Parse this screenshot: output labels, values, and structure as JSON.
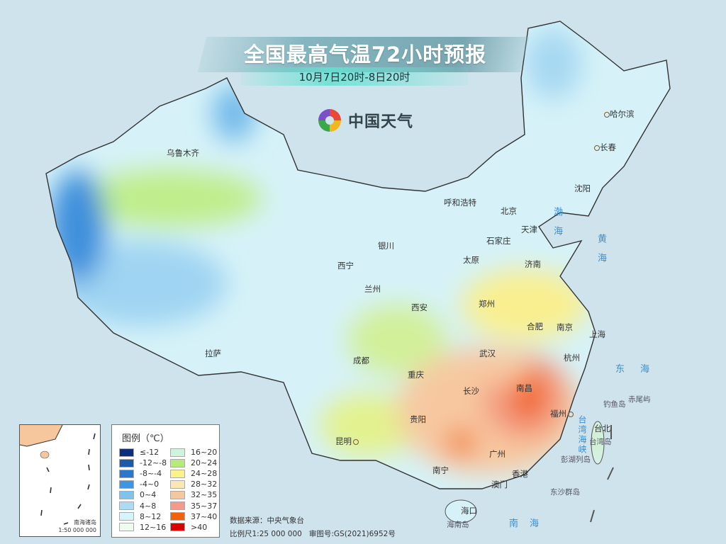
{
  "header": {
    "title": "全国最高气温72小时预报",
    "subtitle": "10月7日20时-8日20时",
    "logo_text": "中国天气",
    "logo_icon": "china-weather-swirl-logo"
  },
  "cities": {
    "urumqi": "乌鲁木齐",
    "harbin": "哈尔滨",
    "changchun": "长春",
    "shenyang": "沈阳",
    "hohhot": "呼和浩特",
    "beijing": "北京",
    "tianjin": "天津",
    "shijiazhuang": "石家庄",
    "yinchuan": "银川",
    "taiyuan": "太原",
    "jinan": "济南",
    "xining": "西宁",
    "lanzhou": "兰州",
    "zhengzhou": "郑州",
    "xian": "西安",
    "hefei": "合肥",
    "nanjing": "南京",
    "shanghai": "上海",
    "wuhan": "武汉",
    "hangzhou": "杭州",
    "lhasa": "拉萨",
    "chengdu": "成都",
    "chongqing": "重庆",
    "changsha": "长沙",
    "nanchang": "南昌",
    "fuzhou": "福州",
    "taipei": "台北",
    "guiyang": "贵阳",
    "kunming": "昆明",
    "guangzhou": "广州",
    "nanning": "南宁",
    "hongkong": "香港",
    "macau": "澳门",
    "haikou": "海口"
  },
  "seas": {
    "bohai": "渤海",
    "huanghai": "黄海",
    "donghai": "东海",
    "nanhai": "南海",
    "taiwan_strait": "台湾海峡"
  },
  "islands": {
    "chiweiyu": "赤尾屿",
    "diaoyudao": "钓鱼岛",
    "taiwan": "台湾岛",
    "penghu": "彭湖列岛",
    "dongsha": "东沙群岛",
    "hainan": "海南岛"
  },
  "inset": {
    "label": "南海诸岛",
    "scale": "1:50 000 000"
  },
  "legend": {
    "title": "图例（℃）",
    "items": [
      {
        "label": "≤-12",
        "color": "#0b2f7c"
      },
      {
        "label": "-12~-8",
        "color": "#1d5aa8"
      },
      {
        "label": "-8~-4",
        "color": "#2b77cc"
      },
      {
        "label": "-4~0",
        "color": "#3e95e0"
      },
      {
        "label": "0~4",
        "color": "#7cc4ee"
      },
      {
        "label": "4~8",
        "color": "#aadcf4"
      },
      {
        "label": "8~12",
        "color": "#d3f5fb"
      },
      {
        "label": "12~16",
        "color": "#eefbee"
      },
      {
        "label": "16~20",
        "color": "#cdf5dc"
      },
      {
        "label": "20~24",
        "color": "#b5ec78"
      },
      {
        "label": "24~28",
        "color": "#fbf28a"
      },
      {
        "label": "28~32",
        "color": "#fbe6b4"
      },
      {
        "label": "32~35",
        "color": "#f6c79c"
      },
      {
        "label": "35~37",
        "color": "#f49a8a"
      },
      {
        "label": "37~40",
        "color": "#f5600c"
      },
      {
        "label": ">40",
        "color": "#dc0000"
      }
    ]
  },
  "footer": {
    "source": "数据来源：中央气象台",
    "scale_and_approval": "比例尺1:25 000 000   审图号:GS(2021)6952号"
  }
}
